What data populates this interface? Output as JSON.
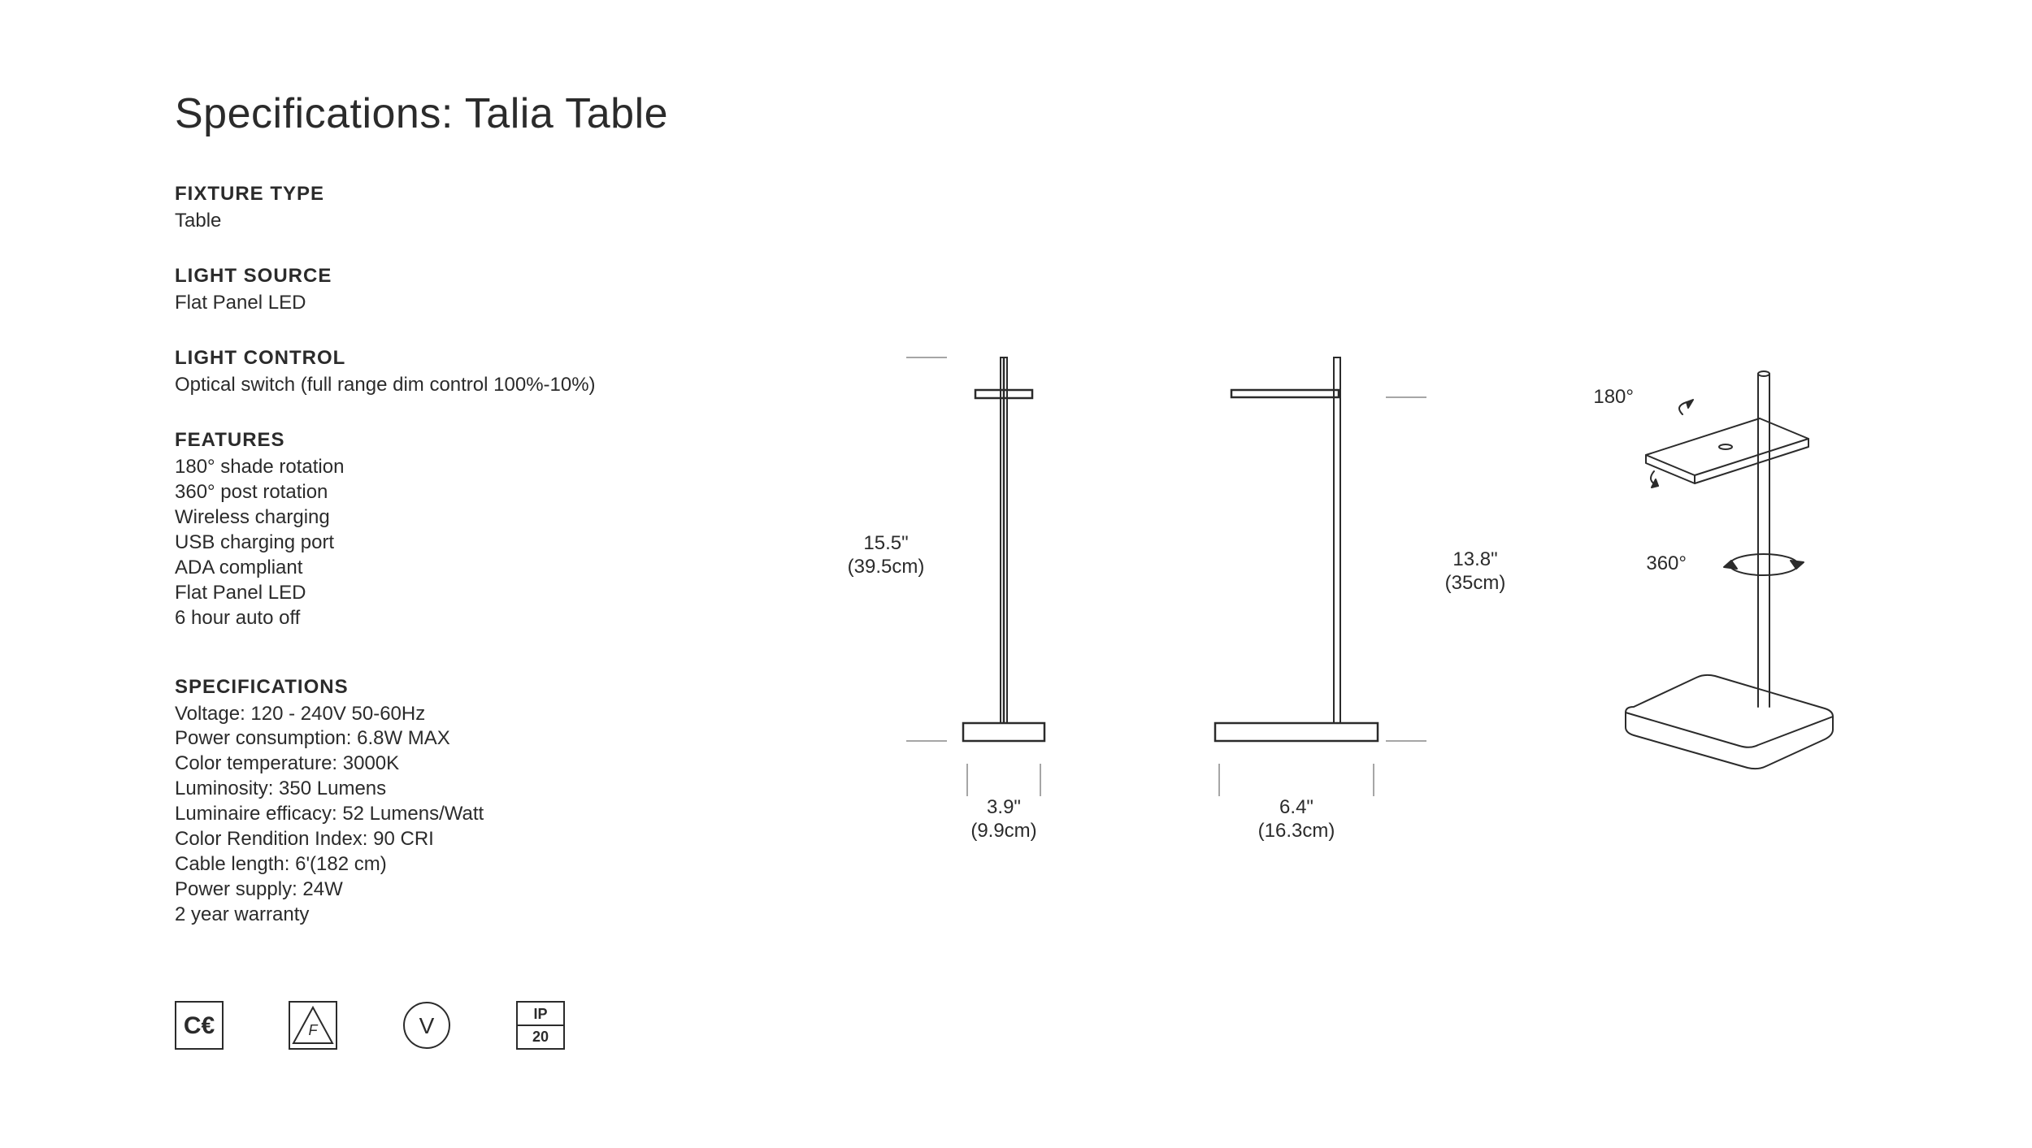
{
  "title": "Specifications: Talia Table",
  "colors": {
    "text": "#2b2b2b",
    "background": "#ffffff",
    "line": "#2b2b2b",
    "line_light": "#888888"
  },
  "fixture_type": {
    "label": "FIXTURE TYPE",
    "value": "Table"
  },
  "light_source": {
    "label": "LIGHT SOURCE",
    "value": "Flat Panel LED"
  },
  "light_control": {
    "label": "LIGHT CONTROL",
    "value": "Optical switch (full range dim control 100%-10%)"
  },
  "features": {
    "label": "FEATURES",
    "items": [
      "180° shade rotation",
      "360° post rotation",
      "Wireless charging",
      "USB charging port",
      "ADA compliant",
      "Flat Panel LED",
      "6 hour auto off"
    ]
  },
  "specifications": {
    "label": "SPECIFICATIONS",
    "items": [
      "Voltage: 120 - 240V 50-60Hz",
      "Power consumption: 6.8W MAX",
      "Color temperature: 3000K",
      "Luminosity: 350  Lumens",
      "Luminaire efficacy: 52 Lumens/Watt",
      "Color Rendition Index: 90 CRI",
      "Cable length: 6'(182 cm)",
      "Power supply: 24W",
      "2 year warranty"
    ]
  },
  "certifications": {
    "ce": "CE",
    "f": "F",
    "v": "V",
    "ip_top": "IP",
    "ip_bottom": "20"
  },
  "diagram": {
    "front": {
      "height_in": "15.5\"",
      "height_cm": "(39.5cm)",
      "width_in": "3.9\"",
      "width_cm": "(9.9cm)"
    },
    "side": {
      "height_in": "13.8\"",
      "height_cm": "(35cm)",
      "width_in": "6.4\"",
      "width_cm": "(16.3cm)"
    },
    "iso": {
      "shade_rotation": "180°",
      "post_rotation": "360°"
    }
  }
}
